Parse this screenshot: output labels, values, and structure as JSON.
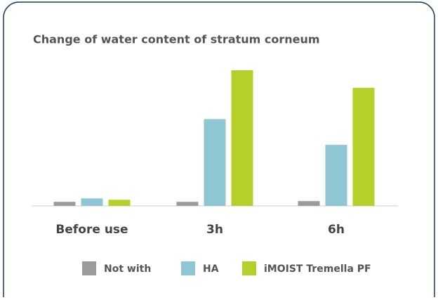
{
  "chart_data": {
    "type": "bar",
    "title": "Change of water content of stratum corneum",
    "categories": [
      "Before use",
      "3h",
      "6h"
    ],
    "series": [
      {
        "name": "Not with",
        "color": "#9b9b9b",
        "values": [
          3,
          3,
          3.5
        ]
      },
      {
        "name": "HA",
        "color": "#8fc6d3",
        "values": [
          5.5,
          64,
          45
        ]
      },
      {
        "name": "iMOIST Tremella PF",
        "color": "#b5cf2b",
        "values": [
          4.5,
          100,
          87
        ]
      }
    ],
    "ylim": [
      0,
      100
    ]
  }
}
